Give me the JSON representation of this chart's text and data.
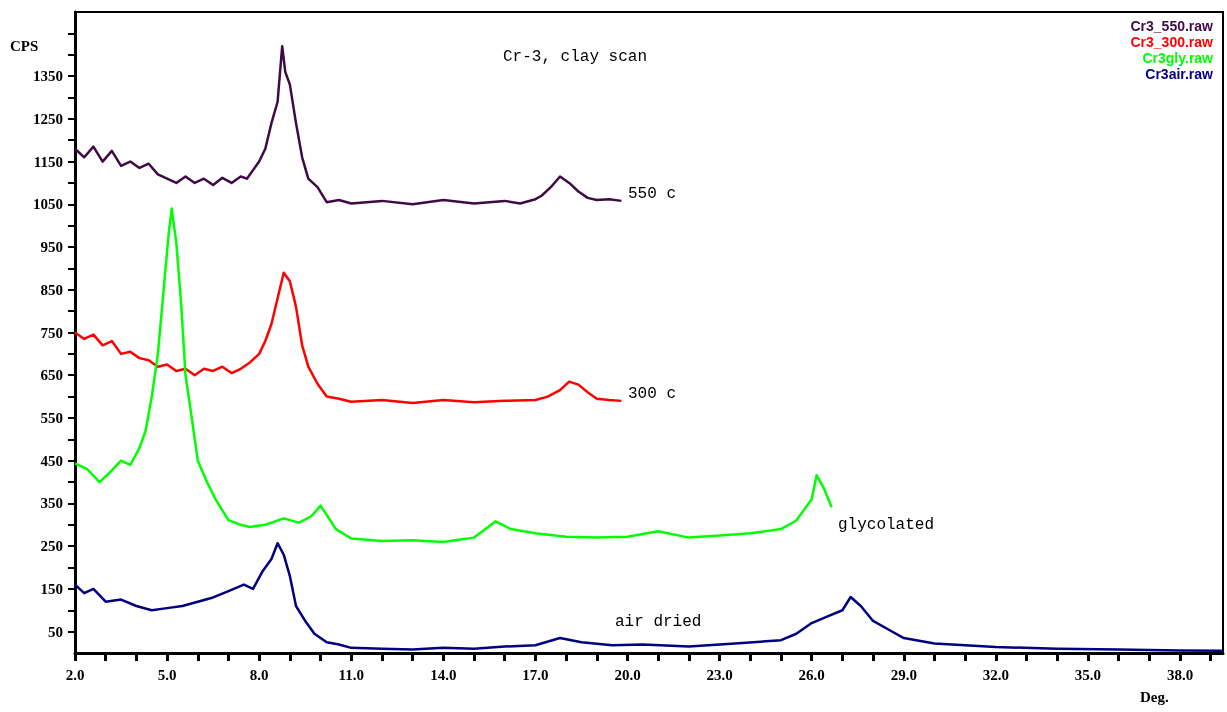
{
  "chart_data": {
    "type": "line",
    "title": "Cr-3, clay scan",
    "xlabel": "Deg.",
    "ylabel": "CPS",
    "xlim": [
      2,
      39.4
    ],
    "xticks": [
      {
        "value": 2,
        "label": "2.0"
      },
      {
        "value": 3,
        "label": null
      },
      {
        "value": 4,
        "label": null
      },
      {
        "value": 5,
        "label": "5.0"
      },
      {
        "value": 6,
        "label": null
      },
      {
        "value": 7,
        "label": null
      },
      {
        "value": 8,
        "label": "8.0"
      },
      {
        "value": 9,
        "label": null
      },
      {
        "value": 10,
        "label": null
      },
      {
        "value": 11,
        "label": "11.0"
      },
      {
        "value": 12,
        "label": null
      },
      {
        "value": 13,
        "label": null
      },
      {
        "value": 14,
        "label": "14.0"
      },
      {
        "value": 15,
        "label": null
      },
      {
        "value": 16,
        "label": null
      },
      {
        "value": 17,
        "label": "17.0"
      },
      {
        "value": 18,
        "label": null
      },
      {
        "value": 19,
        "label": null
      },
      {
        "value": 20,
        "label": "20.0"
      },
      {
        "value": 21,
        "label": null
      },
      {
        "value": 22,
        "label": null
      },
      {
        "value": 23,
        "label": "23.0"
      },
      {
        "value": 24,
        "label": null
      },
      {
        "value": 25,
        "label": null
      },
      {
        "value": 26,
        "label": "26.0"
      },
      {
        "value": 27,
        "label": null
      },
      {
        "value": 28,
        "label": null
      },
      {
        "value": 29,
        "label": "29.0"
      },
      {
        "value": 30,
        "label": null
      },
      {
        "value": 31,
        "label": null
      },
      {
        "value": 32,
        "label": "32.0"
      },
      {
        "value": 33,
        "label": null
      },
      {
        "value": 34,
        "label": null
      },
      {
        "value": 35,
        "label": "35.0"
      },
      {
        "value": 36,
        "label": null
      },
      {
        "value": 37,
        "label": null
      },
      {
        "value": 38,
        "label": "38.0"
      },
      {
        "value": 39,
        "label": null
      }
    ],
    "ylim": [
      0,
      1500
    ],
    "yticks": [
      50,
      {
        "value": 100,
        "label": null
      },
      150,
      {
        "value": 200,
        "label": null
      },
      250,
      {
        "value": 300,
        "label": null
      },
      350,
      {
        "value": 400,
        "label": null
      },
      450,
      {
        "value": 500,
        "label": null
      },
      550,
      {
        "value": 600,
        "label": null
      },
      650,
      {
        "value": 700,
        "label": null
      },
      750,
      {
        "value": 800,
        "label": null
      },
      850,
      {
        "value": 900,
        "label": null
      },
      950,
      {
        "value": 1000,
        "label": null
      },
      1050,
      {
        "value": 1100,
        "label": null
      },
      1150,
      {
        "value": 1200,
        "label": null
      },
      1250,
      {
        "value": 1300,
        "label": null
      },
      1350,
      {
        "value": 1400,
        "label": null
      },
      {
        "value": 1450,
        "label": null
      }
    ],
    "grid": false,
    "legend": "top right",
    "annotations": [
      "550 c",
      "300 c",
      "glycolated",
      "air dried"
    ],
    "series": [
      {
        "name": "Cr3_550.raw",
        "color": "#3f0a45",
        "x": [
          2.0,
          2.3,
          2.6,
          2.9,
          3.2,
          3.5,
          3.8,
          4.1,
          4.4,
          4.7,
          5.0,
          5.3,
          5.6,
          5.9,
          6.2,
          6.5,
          6.8,
          7.1,
          7.4,
          7.6,
          7.8,
          8.0,
          8.2,
          8.4,
          8.6,
          8.75,
          8.85,
          9.0,
          9.2,
          9.4,
          9.6,
          9.9,
          10.2,
          10.6,
          11.0,
          12.0,
          13.0,
          14.0,
          15.0,
          16.0,
          16.5,
          17.0,
          17.2,
          17.5,
          17.8,
          18.1,
          18.4,
          18.7,
          19.0,
          19.4,
          19.8
        ],
        "values": [
          1180,
          1160,
          1185,
          1150,
          1175,
          1140,
          1150,
          1135,
          1145,
          1120,
          1110,
          1100,
          1115,
          1100,
          1110,
          1095,
          1112,
          1100,
          1115,
          1110,
          1130,
          1150,
          1180,
          1240,
          1290,
          1420,
          1360,
          1330,
          1240,
          1160,
          1110,
          1090,
          1055,
          1060,
          1052,
          1058,
          1050,
          1060,
          1052,
          1058,
          1052,
          1062,
          1070,
          1090,
          1115,
          1100,
          1080,
          1065,
          1060,
          1062,
          1058
        ]
      },
      {
        "name": "Cr3_300.raw",
        "color": "#ff0000",
        "x": [
          2.0,
          2.3,
          2.6,
          2.9,
          3.2,
          3.5,
          3.8,
          4.1,
          4.4,
          4.7,
          5.0,
          5.3,
          5.6,
          5.9,
          6.2,
          6.5,
          6.8,
          7.1,
          7.4,
          7.7,
          8.0,
          8.2,
          8.4,
          8.6,
          8.8,
          9.0,
          9.2,
          9.4,
          9.6,
          9.9,
          10.2,
          10.6,
          11.0,
          12.0,
          13.0,
          14.0,
          15.0,
          16.0,
          17.0,
          17.4,
          17.8,
          18.1,
          18.4,
          18.7,
          19.0,
          19.4,
          19.8
        ],
        "values": [
          750,
          735,
          745,
          720,
          730,
          700,
          705,
          690,
          685,
          670,
          675,
          660,
          665,
          650,
          665,
          660,
          670,
          655,
          665,
          680,
          700,
          730,
          770,
          830,
          890,
          870,
          810,
          720,
          670,
          630,
          600,
          595,
          588,
          592,
          585,
          592,
          587,
          590,
          592,
          600,
          615,
          635,
          628,
          610,
          595,
          592,
          590
        ]
      },
      {
        "name": "Cr3gly.raw",
        "color": "#00ff00",
        "x": [
          2.0,
          2.4,
          2.8,
          3.1,
          3.5,
          3.8,
          4.1,
          4.3,
          4.5,
          4.7,
          4.9,
          5.05,
          5.15,
          5.3,
          5.45,
          5.6,
          5.8,
          6.0,
          6.3,
          6.6,
          7.0,
          7.4,
          7.7,
          8.2,
          8.8,
          9.3,
          9.7,
          10.0,
          10.5,
          11.0,
          12.0,
          13.0,
          14.0,
          14.5,
          15.0,
          15.7,
          16.2,
          17.0,
          18.0,
          19.0,
          20.0,
          21.0,
          22.0,
          23.0,
          24.0,
          25.0,
          25.5,
          26.0,
          26.16,
          26.4,
          26.65
        ],
        "values": [
          444,
          430,
          400,
          420,
          450,
          440,
          480,
          520,
          600,
          700,
          860,
          980,
          1040,
          960,
          825,
          650,
          552,
          450,
          400,
          357,
          311,
          300,
          295,
          300,
          315,
          305,
          320,
          345,
          290,
          268,
          262,
          264,
          260,
          265,
          270,
          308,
          290,
          280,
          272,
          270,
          272,
          285,
          270,
          275,
          280,
          290,
          310,
          360,
          416,
          385,
          341
        ]
      },
      {
        "name": "Cr3air.raw",
        "color": "#000080",
        "x": [
          2.0,
          2.3,
          2.6,
          3.0,
          3.5,
          4.0,
          4.5,
          5.0,
          5.5,
          6.0,
          6.5,
          7.0,
          7.5,
          7.8,
          8.1,
          8.4,
          8.6,
          8.8,
          9.0,
          9.2,
          9.5,
          9.8,
          10.2,
          10.6,
          11.0,
          12.0,
          13.0,
          14.0,
          15.0,
          16.0,
          17.0,
          17.8,
          18.5,
          19.5,
          20.5,
          22.0,
          23.5,
          25.0,
          25.5,
          26.0,
          26.5,
          27.0,
          27.27,
          27.6,
          28.0,
          28.5,
          29.0,
          30.0,
          31.0,
          32.0,
          34.0,
          36.0,
          38.0,
          39.4
        ],
        "values": [
          160,
          140,
          150,
          120,
          125,
          110,
          100,
          105,
          110,
          120,
          130,
          145,
          160,
          150,
          190,
          220,
          257,
          230,
          180,
          110,
          75,
          45,
          25,
          20,
          12,
          10,
          8,
          12,
          10,
          15,
          18,
          35,
          25,
          18,
          20,
          15,
          22,
          30,
          45,
          70,
          85,
          100,
          131,
          110,
          75,
          55,
          35,
          22,
          18,
          14,
          10,
          8,
          6,
          5
        ]
      }
    ]
  }
}
